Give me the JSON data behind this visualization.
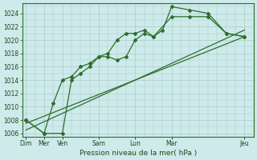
{
  "background_color": "#ceeaea",
  "grid_color": "#a8cccc",
  "line_color": "#2d6e2d",
  "xlabel": "Pression niveau de la mer( hPa )",
  "ylim": [
    1005.5,
    1025.5
  ],
  "yticks": [
    1006,
    1008,
    1010,
    1012,
    1014,
    1016,
    1018,
    1020,
    1022,
    1024
  ],
  "xtick_major_labels": [
    "Dim",
    "Mer",
    "Ven",
    "Sam",
    "Lun",
    "Mar",
    "Jeu"
  ],
  "xtick_major_pos": [
    0,
    1,
    2,
    4,
    6,
    8,
    12
  ],
  "series1_x": [
    0,
    1,
    1.5,
    2,
    2.5,
    3,
    3.5,
    4,
    4.5,
    5,
    5.5,
    6,
    6.5,
    7,
    8,
    9,
    10,
    11,
    12
  ],
  "series1_y": [
    1008,
    1006,
    1010.5,
    1014,
    1014.5,
    1016,
    1016.5,
    1017.5,
    1018,
    1020,
    1021,
    1021,
    1021.5,
    1020.5,
    1023.5,
    1023.5,
    1023.5,
    1021,
    1020.5
  ],
  "series2_x": [
    0,
    1,
    2,
    2.5,
    3,
    3.5,
    4,
    4.5,
    5,
    5.5,
    6,
    6.5,
    7,
    7.5,
    8,
    9,
    10,
    11,
    12
  ],
  "series2_y": [
    1008,
    1006,
    1006,
    1014,
    1015,
    1016,
    1017.5,
    1017.5,
    1017,
    1017.5,
    1020,
    1021,
    1020.5,
    1021.5,
    1025,
    1024.5,
    1024,
    1021,
    1020.5
  ],
  "series3_x": [
    0,
    12
  ],
  "series3_y": [
    1007.5,
    1020.5
  ],
  "series4_x": [
    0,
    12
  ],
  "series4_y": [
    1006.5,
    1021.5
  ]
}
